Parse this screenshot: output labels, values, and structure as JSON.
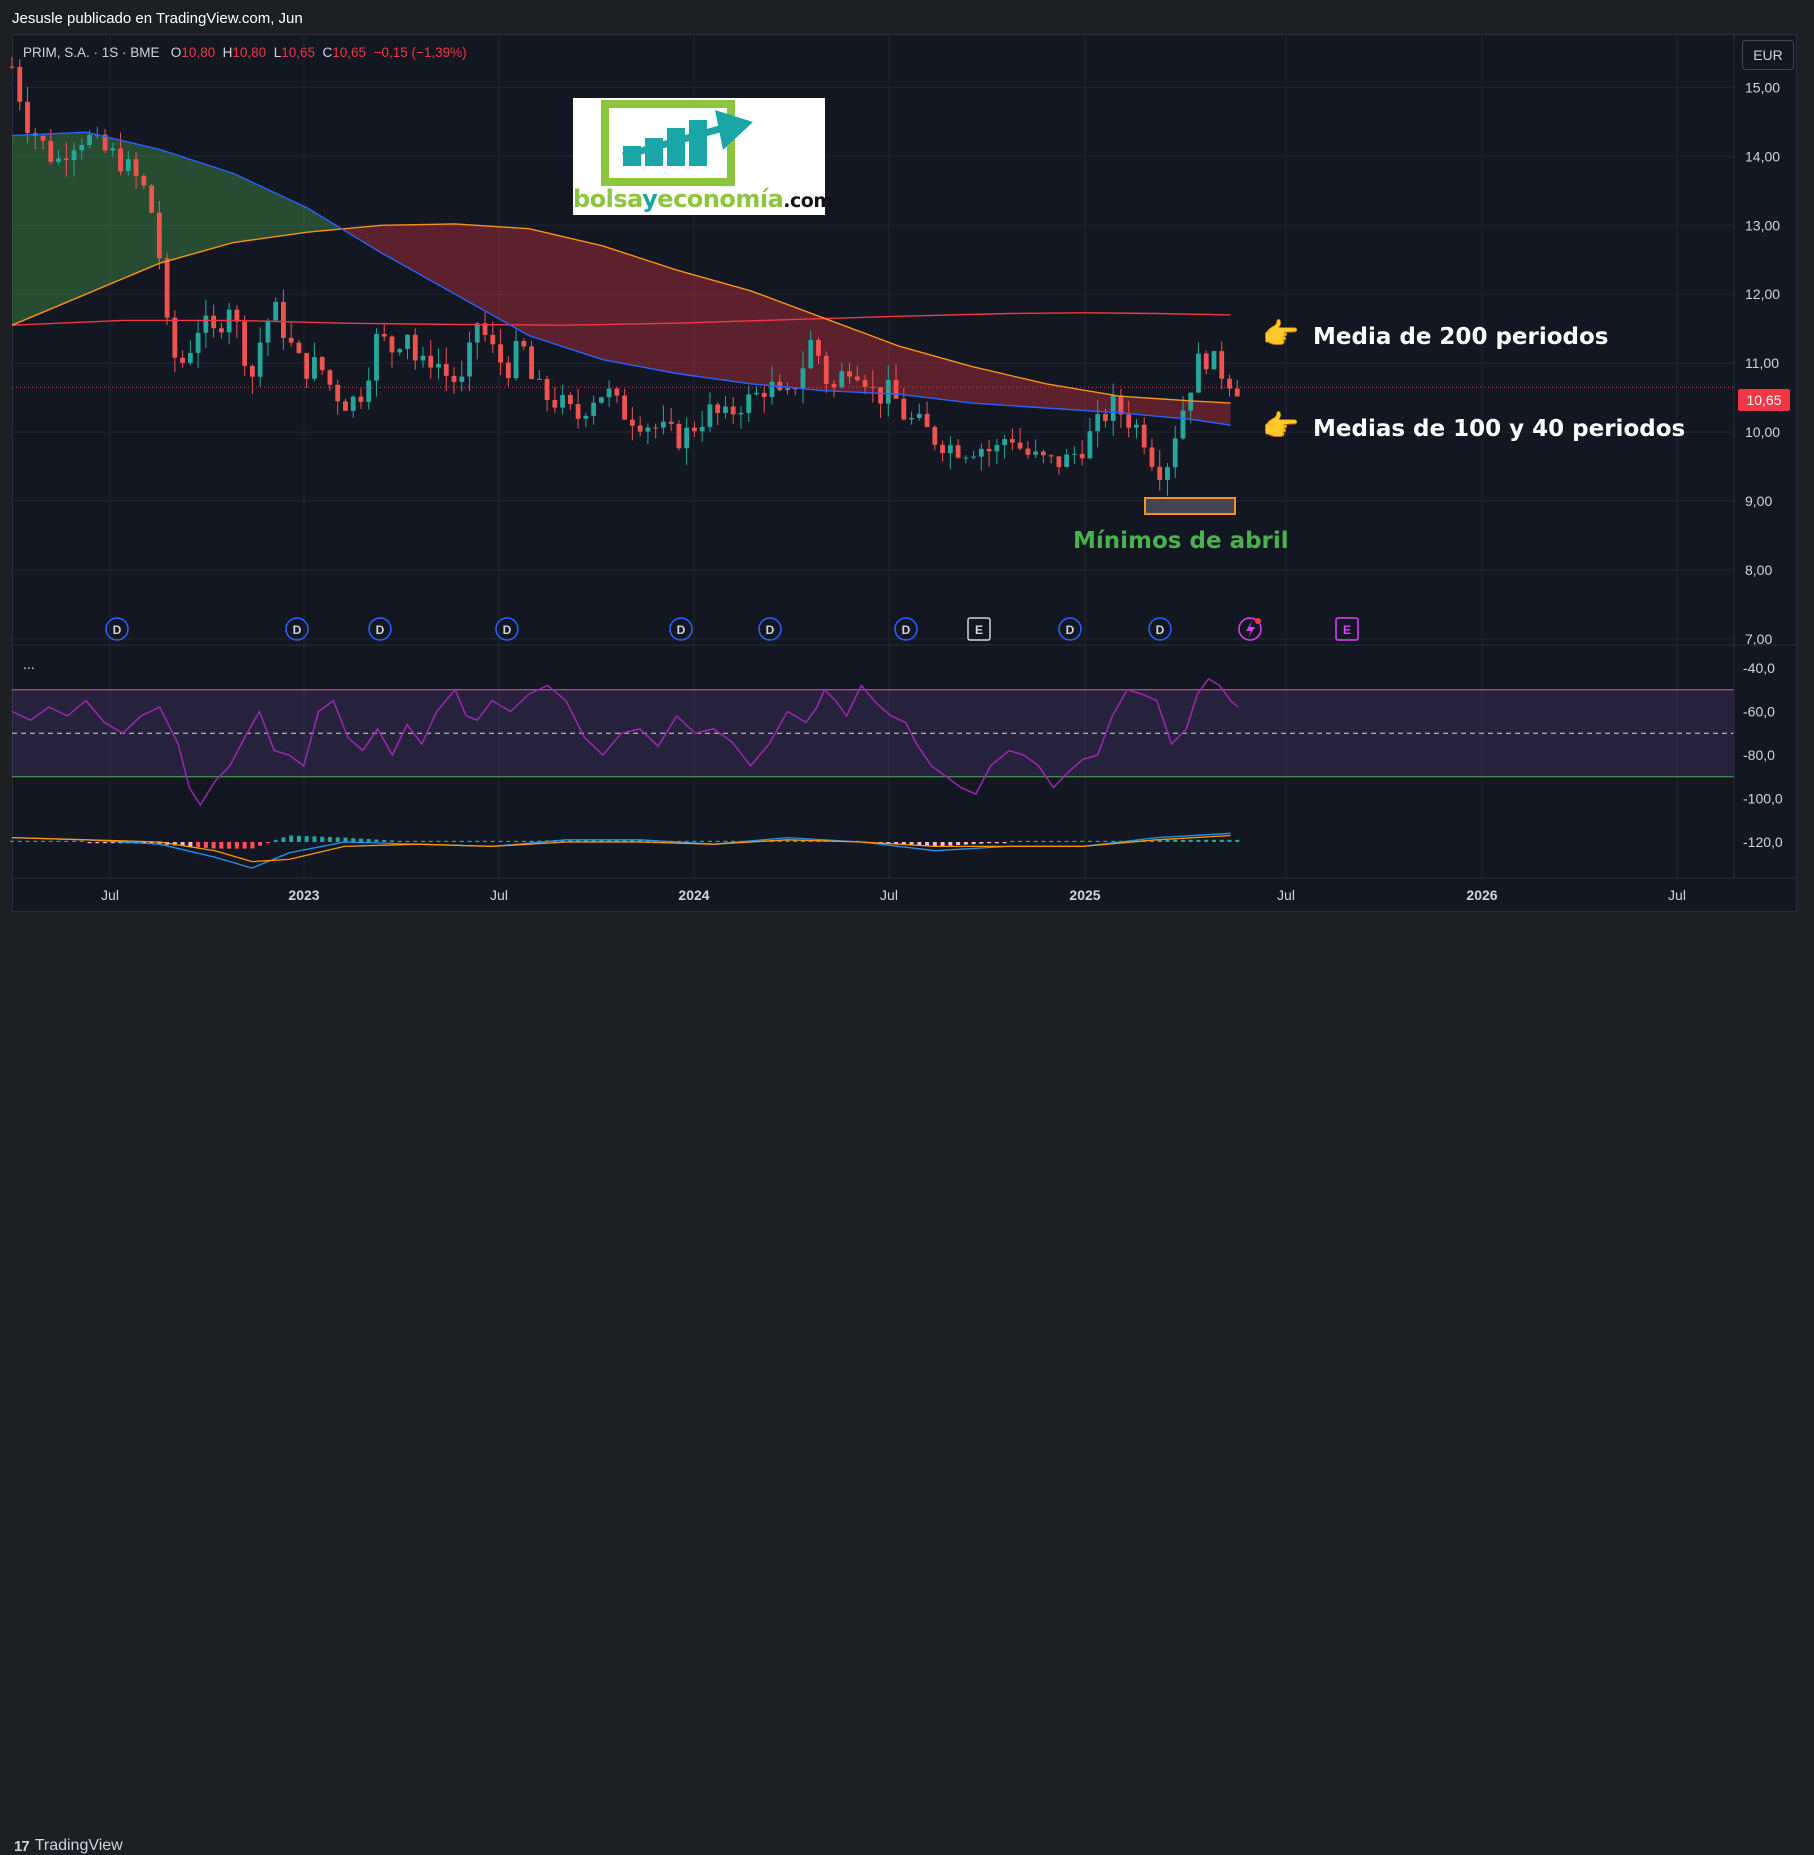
{
  "header": {
    "publisher": "Jesusle publicado en TradingView.com, Jun"
  },
  "legend": {
    "symbol": "PRIM, S.A. · 1S · BME",
    "o_label": "O",
    "o_value": "10,80",
    "h_label": "H",
    "h_value": "10,80",
    "l_label": "L",
    "l_value": "10,65",
    "c_label": "C",
    "c_value": "10,65",
    "change": "−0,15 (−1,39%)"
  },
  "currency_button": "EUR",
  "last_price_tag": "10,65",
  "logo": {
    "part1": "bolsa",
    "part2": "y",
    "part3": "economía",
    "part4": ".com"
  },
  "annotations": {
    "ma200": "Media de 200 periodos",
    "ma100_40": "Medias de 100 y 40 periodos",
    "april_lows": "Mínimos de abril",
    "hand_icon": "pointing-hand-icon"
  },
  "indicator_menu": "...",
  "footer": {
    "brand_mark": "17",
    "brand": "TradingView"
  },
  "colors": {
    "up": "#26a69a",
    "down": "#ef5350",
    "ma200": "#f23645",
    "ma100": "#f7931a",
    "ma40": "#2962ff",
    "rsi": "#9c27b0",
    "background": "#131722"
  },
  "chart_data": {
    "type": "candlestick",
    "y_ticks": [
      "15,00",
      "14,00",
      "13,00",
      "12,00",
      "11,00",
      "10,00",
      "9,00",
      "8,00",
      "7,00"
    ],
    "y_tick_values": [
      15,
      14,
      13,
      12,
      11,
      10,
      9,
      8,
      7
    ],
    "ylim": [
      7,
      15.6
    ],
    "x_ticks": [
      "Jul",
      "2023",
      "Jul",
      "2024",
      "Jul",
      "2025",
      "Jul",
      "2026",
      "Jul"
    ],
    "x_tick_dates": [
      "2022-07",
      "2023-01",
      "2023-07",
      "2024-01",
      "2024-07",
      "2025-01",
      "2025-07",
      "2026-01",
      "2026-07"
    ],
    "last_price": 10.65,
    "ma200": [
      [
        0,
        11.55
      ],
      [
        60,
        11.62
      ],
      [
        120,
        11.62
      ],
      [
        180,
        11.58
      ],
      [
        240,
        11.56
      ],
      [
        300,
        11.55
      ],
      [
        360,
        11.58
      ],
      [
        420,
        11.63
      ],
      [
        480,
        11.68
      ],
      [
        540,
        11.72
      ],
      [
        580,
        11.73
      ],
      [
        620,
        11.72
      ],
      [
        660,
        11.7
      ]
    ],
    "ma100": [
      [
        0,
        11.55
      ],
      [
        40,
        12.0
      ],
      [
        80,
        12.45
      ],
      [
        120,
        12.75
      ],
      [
        160,
        12.9
      ],
      [
        200,
        13.0
      ],
      [
        240,
        13.02
      ],
      [
        280,
        12.95
      ],
      [
        320,
        12.7
      ],
      [
        360,
        12.35
      ],
      [
        400,
        12.05
      ],
      [
        440,
        11.65
      ],
      [
        480,
        11.25
      ],
      [
        520,
        10.95
      ],
      [
        560,
        10.7
      ],
      [
        600,
        10.52
      ],
      [
        640,
        10.45
      ],
      [
        660,
        10.42
      ]
    ],
    "ma40": [
      [
        0,
        14.3
      ],
      [
        40,
        14.35
      ],
      [
        80,
        14.1
      ],
      [
        120,
        13.75
      ],
      [
        160,
        13.25
      ],
      [
        200,
        12.6
      ],
      [
        240,
        12.0
      ],
      [
        280,
        11.4
      ],
      [
        320,
        11.05
      ],
      [
        360,
        10.85
      ],
      [
        400,
        10.7
      ],
      [
        440,
        10.6
      ],
      [
        480,
        10.55
      ],
      [
        520,
        10.42
      ],
      [
        560,
        10.35
      ],
      [
        600,
        10.28
      ],
      [
        640,
        10.18
      ],
      [
        660,
        10.1
      ]
    ],
    "candle_path": [
      [
        0,
        15.3
      ],
      [
        8,
        14.5
      ],
      [
        16,
        14.2
      ],
      [
        24,
        13.9
      ],
      [
        32,
        14.2
      ],
      [
        40,
        14.3
      ],
      [
        48,
        14.1
      ],
      [
        56,
        14.0
      ],
      [
        64,
        13.8
      ],
      [
        72,
        13.5
      ],
      [
        78,
        13.0
      ],
      [
        84,
        11.5
      ],
      [
        90,
        10.9
      ],
      [
        96,
        11.2
      ],
      [
        102,
        11.6
      ],
      [
        110,
        11.4
      ],
      [
        118,
        11.9
      ],
      [
        124,
        11.3
      ],
      [
        130,
        10.8
      ],
      [
        136,
        11.5
      ],
      [
        142,
        11.8
      ],
      [
        150,
        11.3
      ],
      [
        158,
        10.9
      ],
      [
        166,
        11.0
      ],
      [
        174,
        10.6
      ],
      [
        182,
        10.4
      ],
      [
        190,
        10.6
      ],
      [
        198,
        11.4
      ],
      [
        206,
        11.2
      ],
      [
        214,
        11.5
      ],
      [
        220,
        10.9
      ],
      [
        228,
        11.1
      ],
      [
        236,
        10.8
      ],
      [
        244,
        10.7
      ],
      [
        252,
        11.6
      ],
      [
        260,
        11.2
      ],
      [
        268,
        10.9
      ],
      [
        276,
        11.3
      ],
      [
        282,
        10.7
      ],
      [
        290,
        10.5
      ],
      [
        298,
        10.4
      ],
      [
        306,
        10.2
      ],
      [
        314,
        10.5
      ],
      [
        322,
        10.6
      ],
      [
        330,
        10.3
      ],
      [
        338,
        10.2
      ],
      [
        346,
        10.1
      ],
      [
        354,
        10.0
      ],
      [
        362,
        9.9
      ],
      [
        370,
        10.1
      ],
      [
        378,
        10.3
      ],
      [
        386,
        10.2
      ],
      [
        394,
        10.4
      ],
      [
        402,
        10.5
      ],
      [
        410,
        10.7
      ],
      [
        418,
        10.4
      ],
      [
        426,
        10.8
      ],
      [
        434,
        11.4
      ],
      [
        440,
        10.8
      ],
      [
        446,
        10.6
      ],
      [
        452,
        11.0
      ],
      [
        460,
        10.9
      ],
      [
        468,
        10.5
      ],
      [
        476,
        10.6
      ],
      [
        484,
        10.2
      ],
      [
        492,
        10.1
      ],
      [
        500,
        9.9
      ],
      [
        508,
        9.8
      ],
      [
        516,
        9.75
      ],
      [
        524,
        9.8
      ],
      [
        532,
        9.7
      ],
      [
        540,
        10.0
      ],
      [
        548,
        9.7
      ],
      [
        556,
        9.6
      ],
      [
        564,
        9.55
      ],
      [
        572,
        9.6
      ],
      [
        580,
        9.8
      ],
      [
        588,
        10.1
      ],
      [
        596,
        10.4
      ],
      [
        604,
        10.2
      ],
      [
        612,
        10.0
      ],
      [
        618,
        9.6
      ],
      [
        624,
        9.4
      ],
      [
        630,
        10.0
      ],
      [
        636,
        10.5
      ],
      [
        642,
        11.0
      ],
      [
        648,
        11.1
      ],
      [
        654,
        10.9
      ],
      [
        660,
        10.75
      ],
      [
        664,
        10.65
      ]
    ],
    "events_earnings": [
      "E",
      "E"
    ],
    "dividend_marker": "D",
    "rsi": {
      "y_ticks": [
        "-40,0",
        "-60,0",
        "-80,0",
        "-100,0",
        "-120,0"
      ],
      "y_tick_values": [
        -40,
        -60,
        -80,
        -100,
        -120
      ],
      "upper_band": -50,
      "mid": -70,
      "lower_band": -90,
      "values": [
        [
          0,
          -60
        ],
        [
          10,
          -64
        ],
        [
          20,
          -58
        ],
        [
          30,
          -62
        ],
        [
          40,
          -55
        ],
        [
          50,
          -65
        ],
        [
          60,
          -70
        ],
        [
          70,
          -62
        ],
        [
          80,
          -58
        ],
        [
          90,
          -75
        ],
        [
          96,
          -95
        ],
        [
          102,
          -103
        ],
        [
          110,
          -92
        ],
        [
          118,
          -85
        ],
        [
          126,
          -72
        ],
        [
          134,
          -60
        ],
        [
          142,
          -78
        ],
        [
          150,
          -80
        ],
        [
          158,
          -85
        ],
        [
          166,
          -60
        ],
        [
          174,
          -55
        ],
        [
          182,
          -72
        ],
        [
          190,
          -78
        ],
        [
          198,
          -68
        ],
        [
          206,
          -80
        ],
        [
          214,
          -66
        ],
        [
          222,
          -75
        ],
        [
          230,
          -60
        ],
        [
          240,
          -50
        ],
        [
          246,
          -62
        ],
        [
          252,
          -64
        ],
        [
          260,
          -55
        ],
        [
          270,
          -60
        ],
        [
          280,
          -52
        ],
        [
          290,
          -48
        ],
        [
          300,
          -55
        ],
        [
          310,
          -72
        ],
        [
          320,
          -80
        ],
        [
          330,
          -70
        ],
        [
          340,
          -68
        ],
        [
          350,
          -76
        ],
        [
          360,
          -62
        ],
        [
          370,
          -70
        ],
        [
          380,
          -68
        ],
        [
          390,
          -74
        ],
        [
          400,
          -85
        ],
        [
          410,
          -75
        ],
        [
          420,
          -60
        ],
        [
          430,
          -65
        ],
        [
          436,
          -58
        ],
        [
          440,
          -50
        ],
        [
          446,
          -55
        ],
        [
          452,
          -62
        ],
        [
          460,
          -48
        ],
        [
          468,
          -56
        ],
        [
          476,
          -62
        ],
        [
          484,
          -65
        ],
        [
          490,
          -75
        ],
        [
          498,
          -85
        ],
        [
          506,
          -90
        ],
        [
          514,
          -95
        ],
        [
          522,
          -98
        ],
        [
          530,
          -85
        ],
        [
          540,
          -78
        ],
        [
          548,
          -80
        ],
        [
          556,
          -85
        ],
        [
          564,
          -95
        ],
        [
          572,
          -88
        ],
        [
          580,
          -82
        ],
        [
          588,
          -80
        ],
        [
          596,
          -62
        ],
        [
          604,
          -50
        ],
        [
          612,
          -52
        ],
        [
          620,
          -55
        ],
        [
          628,
          -75
        ],
        [
          636,
          -68
        ],
        [
          642,
          -52
        ],
        [
          648,
          -45
        ],
        [
          654,
          -48
        ],
        [
          660,
          -55
        ],
        [
          664,
          -58
        ]
      ]
    },
    "macd": {
      "macd_line": [
        [
          0,
          -118
        ],
        [
          40,
          -119
        ],
        [
          80,
          -121
        ],
        [
          110,
          -127
        ],
        [
          130,
          -132
        ],
        [
          150,
          -125
        ],
        [
          180,
          -120
        ],
        [
          220,
          -121
        ],
        [
          260,
          -122
        ],
        [
          300,
          -119
        ],
        [
          340,
          -119
        ],
        [
          380,
          -121
        ],
        [
          420,
          -118
        ],
        [
          460,
          -120
        ],
        [
          500,
          -124
        ],
        [
          540,
          -122
        ],
        [
          580,
          -122
        ],
        [
          620,
          -118
        ],
        [
          660,
          -116
        ]
      ],
      "signal_line": [
        [
          0,
          -118
        ],
        [
          40,
          -119
        ],
        [
          80,
          -120
        ],
        [
          110,
          -124
        ],
        [
          130,
          -129
        ],
        [
          150,
          -128
        ],
        [
          180,
          -122
        ],
        [
          220,
          -121
        ],
        [
          260,
          -122
        ],
        [
          300,
          -120
        ],
        [
          340,
          -120
        ],
        [
          380,
          -121
        ],
        [
          420,
          -119
        ],
        [
          460,
          -120
        ],
        [
          500,
          -122
        ],
        [
          540,
          -122
        ],
        [
          580,
          -122
        ],
        [
          620,
          -119
        ],
        [
          660,
          -117
        ]
      ]
    }
  }
}
